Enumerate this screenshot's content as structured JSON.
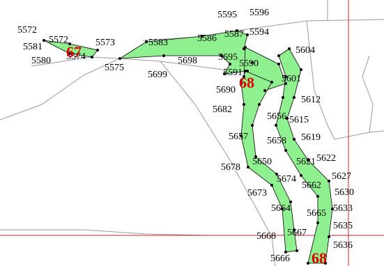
{
  "vertex_labels": [
    "5595",
    "5596",
    "5572",
    "5572",
    "5573",
    "5587",
    "5594",
    "5581",
    "5583",
    "5586",
    "5604",
    "5580",
    "5574",
    "5575",
    "5698",
    "5695",
    "5590",
    "5591",
    "5699",
    "5601",
    "5690",
    "5612",
    "5682",
    "5656",
    "5615",
    "5657",
    "5658",
    "5619",
    "5650",
    "5621",
    "5622",
    "5678",
    "5627",
    "5674",
    "5662",
    "5630",
    "5673",
    "5633",
    "5664",
    "5665",
    "5635",
    "5668",
    "5667",
    "5636",
    "5666"
  ],
  "region_labels": [
    "67",
    "68",
    "68"
  ]
}
